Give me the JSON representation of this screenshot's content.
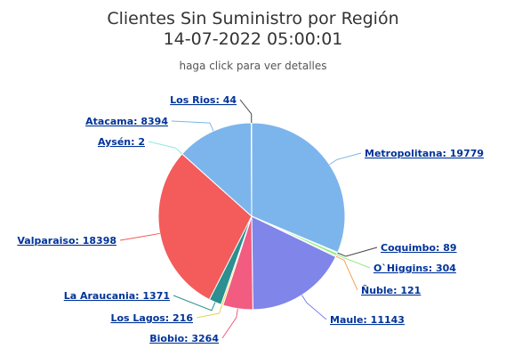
{
  "chart_title_line1": "Clientes Sin Suministro por Región",
  "chart_title_line2": "14-07-2022 05:00:01",
  "subtitle": "haga click para ver detalles",
  "chart_data": {
    "type": "pie",
    "title": "Clientes Sin Suministro por Región",
    "subtitle": "14-07-2022 05:00:01",
    "slices": [
      {
        "name": "Metropolitana",
        "value": 19779,
        "color": "#7cb5ec",
        "label": "Metropolitana: 19779"
      },
      {
        "name": "Coquimbo",
        "value": 89,
        "color": "#434348",
        "label": "Coquimbo: 89"
      },
      {
        "name": "O`Higgins",
        "value": 304,
        "color": "#90ed7d",
        "label": "O`Higgins: 304"
      },
      {
        "name": "Ñuble",
        "value": 121,
        "color": "#f7a35c",
        "label": "Ñuble: 121"
      },
      {
        "name": "Maule",
        "value": 11143,
        "color": "#8085e9",
        "label": "Maule: 11143"
      },
      {
        "name": "Biobio",
        "value": 3264,
        "color": "#f15c80",
        "label": "Biobio: 3264"
      },
      {
        "name": "Los Lagos",
        "value": 216,
        "color": "#e4d354",
        "label": "Los Lagos: 216"
      },
      {
        "name": "La Araucania",
        "value": 1371,
        "color": "#2b908f",
        "label": "La Araucania: 1371"
      },
      {
        "name": "Valparaiso",
        "value": 18398,
        "color": "#f45b5b",
        "label": "Valparaiso: 18398"
      },
      {
        "name": "Aysén",
        "value": 2,
        "color": "#91e8e1",
        "label": "Aysén: 2"
      },
      {
        "name": "Atacama",
        "value": 8394,
        "color": "#7cb5ec",
        "label": "Atacama: 8394"
      },
      {
        "name": "Los Rios",
        "value": 44,
        "color": "#434348",
        "label": "Los Rios: 44"
      }
    ]
  }
}
